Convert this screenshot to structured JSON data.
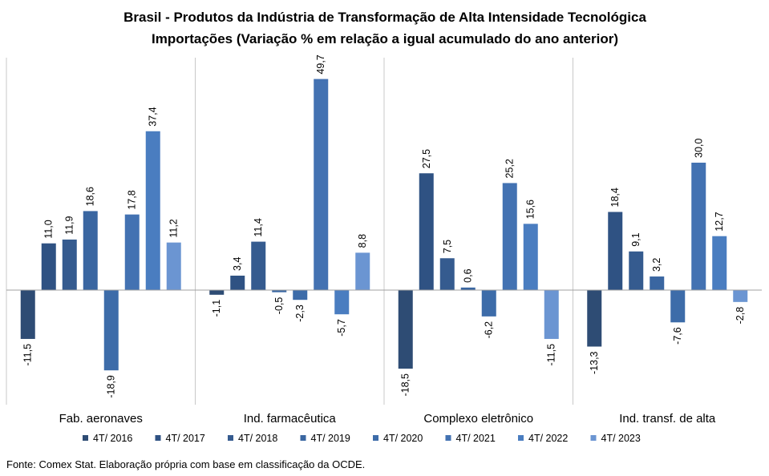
{
  "title": {
    "line1": "Brasil - Produtos da Indústria de Transformação de Alta Intensidade Tecnológica",
    "line2": "Importações (Variação % em relação a igual acumulado do ano anterior)"
  },
  "source": "Fonte: Comex Stat. Elaboração própria com base em classificação da OCDE.",
  "chart_data": {
    "type": "bar",
    "title": "Brasil - Produtos da Indústria de Transformação de Alta Intensidade Tecnológica - Importações (Variação % em relação a igual acumulado do ano anterior)",
    "categories": [
      "Fab. aeronaves",
      "Ind. farmacêutica",
      "Complexo eletrônico",
      "Ind. transf. de alta"
    ],
    "series": [
      {
        "name": "4T/ 2016",
        "color": "#2e4c74",
        "values": [
          -11.5,
          -1.1,
          -18.5,
          -13.3
        ],
        "labels": [
          "-11,5",
          "-1,1",
          "-18,5",
          "-13,3"
        ]
      },
      {
        "name": "4T/ 2017",
        "color": "#2f5283",
        "values": [
          11.0,
          3.4,
          27.5,
          18.4
        ],
        "labels": [
          "11,0",
          "3,4",
          "27,5",
          "18,4"
        ]
      },
      {
        "name": "4T/ 2018",
        "color": "#355b8f",
        "values": [
          11.9,
          11.4,
          7.5,
          9.1
        ],
        "labels": [
          "11,9",
          "11,4",
          "7,5",
          "9,1"
        ]
      },
      {
        "name": "4T/ 2019",
        "color": "#3a66a1",
        "values": [
          18.6,
          -0.5,
          0.6,
          3.2
        ],
        "labels": [
          "18,6",
          "-0,5",
          "0,6",
          "3,2"
        ]
      },
      {
        "name": "4T/ 2020",
        "color": "#3d6ca9",
        "values": [
          -18.9,
          -2.3,
          -6.2,
          -7.6
        ],
        "labels": [
          "-18,9",
          "-2,3",
          "-6,2",
          "-7,6"
        ]
      },
      {
        "name": "4T/ 2021",
        "color": "#4372b2",
        "values": [
          17.8,
          49.7,
          25.2,
          30.0
        ],
        "labels": [
          "17,8",
          "49,7",
          "25,2",
          "30,0"
        ]
      },
      {
        "name": "4T/ 2022",
        "color": "#4a7dc0",
        "values": [
          37.4,
          -5.7,
          15.6,
          12.7
        ],
        "labels": [
          "37,4",
          "-5,7",
          "15,6",
          "12,7"
        ]
      },
      {
        "name": "4T/ 2023",
        "color": "#6b95d2",
        "values": [
          11.2,
          8.8,
          -11.5,
          -2.8
        ],
        "labels": [
          "11,2",
          "8,8",
          "-11,5",
          "-2,8"
        ]
      }
    ],
    "gridlines": false,
    "legend_position": "bottom",
    "ylim": [
      -20,
      55
    ]
  }
}
